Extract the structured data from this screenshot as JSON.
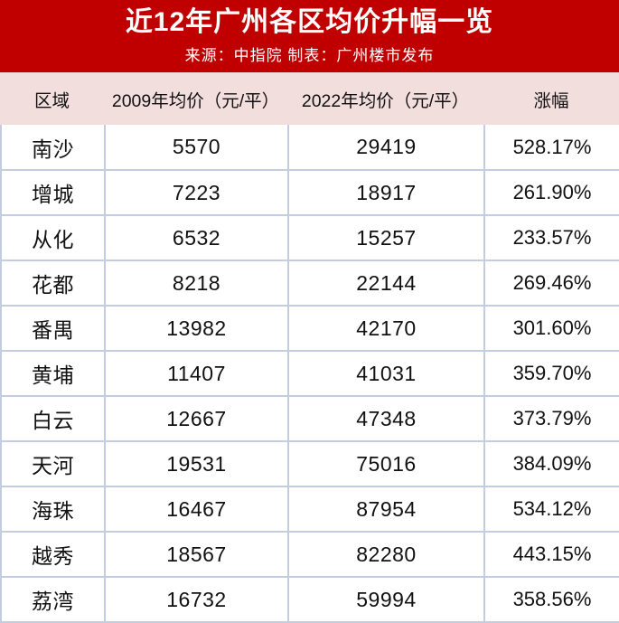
{
  "banner": {
    "title": "近12年广州各区均价升幅一览",
    "subtitle": "来源：中指院 制表：广州楼市发布"
  },
  "colors": {
    "banner_red": "#c00000",
    "header_pink": "#f2dedd",
    "grid_border": "#c3cddf",
    "text": "#111111",
    "banner_text": "#ffffff"
  },
  "chart_data": {
    "type": "table",
    "title": "近12年广州各区均价升幅一览",
    "subtitle": "来源：中指院 制表：广州楼市发布",
    "columns": [
      "区域",
      "2009年均价（元/平）",
      "2022年均价（元/平）",
      "涨幅"
    ],
    "rows": [
      [
        "南沙",
        5570,
        29419,
        "528.17%"
      ],
      [
        "增城",
        7223,
        18917,
        "261.90%"
      ],
      [
        "从化",
        6532,
        15257,
        "233.57%"
      ],
      [
        "花都",
        8218,
        22144,
        "269.46%"
      ],
      [
        "番禺",
        13982,
        42170,
        "301.60%"
      ],
      [
        "黄埔",
        11407,
        41031,
        "359.70%"
      ],
      [
        "白云",
        12667,
        47348,
        "373.79%"
      ],
      [
        "天河",
        19531,
        75016,
        "384.09%"
      ],
      [
        "海珠",
        16467,
        87954,
        "534.12%"
      ],
      [
        "越秀",
        18567,
        82280,
        "443.15%"
      ],
      [
        "荔湾",
        16732,
        59994,
        "358.56%"
      ]
    ]
  }
}
